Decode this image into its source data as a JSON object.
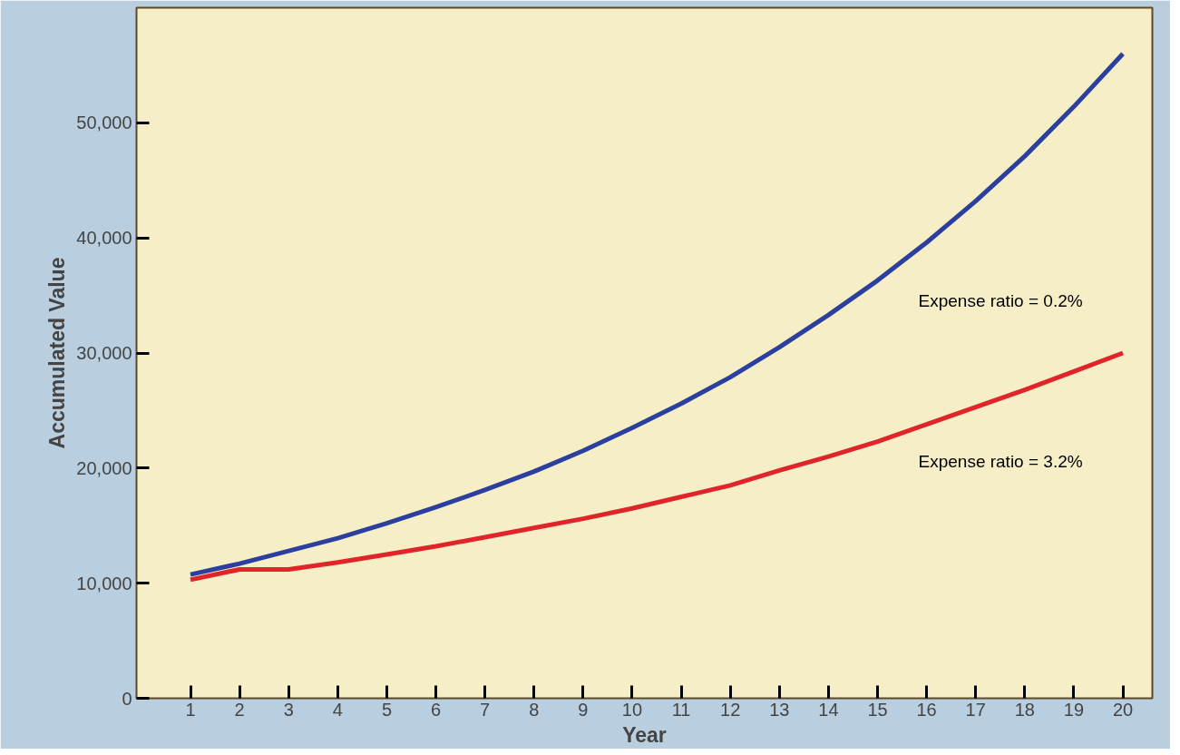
{
  "chart_data": {
    "type": "line",
    "xlabel": "Year",
    "ylabel": "Accumulated Value",
    "x": [
      1,
      2,
      3,
      4,
      5,
      6,
      7,
      8,
      9,
      10,
      11,
      12,
      13,
      14,
      15,
      16,
      17,
      18,
      19,
      20
    ],
    "series": [
      {
        "name": "Expense ratio = 0.2%",
        "color": "#2b3f9e",
        "values": [
          10750,
          11700,
          12800,
          13900,
          15200,
          16600,
          18100,
          19700,
          21500,
          23500,
          25600,
          27900,
          30500,
          33300,
          36300,
          39600,
          43200,
          47100,
          51400,
          56000
        ]
      },
      {
        "name": "Expense ratio = 3.2%",
        "color": "#e0252a",
        "values": [
          10300,
          11200,
          11200,
          11800,
          12500,
          13200,
          14000,
          14800,
          15600,
          16500,
          17500,
          18500,
          19800,
          21000,
          22300,
          23800,
          25300,
          26800,
          28400,
          30000
        ]
      }
    ],
    "xlim": [
      -0.1,
      20.6
    ],
    "xticks": [
      1,
      2,
      3,
      4,
      5,
      6,
      7,
      8,
      9,
      10,
      11,
      12,
      13,
      14,
      15,
      16,
      17,
      18,
      19,
      20
    ],
    "ylim": [
      0,
      60000
    ],
    "yticks": [
      0,
      {
        "value": 10000,
        "label": "10,000"
      },
      {
        "value": 20000,
        "label": "20,000"
      },
      {
        "value": 30000,
        "label": "30,000"
      },
      {
        "value": 40000,
        "label": "40,000"
      },
      {
        "value": 50000,
        "label": "50,000"
      }
    ],
    "grid": false
  }
}
